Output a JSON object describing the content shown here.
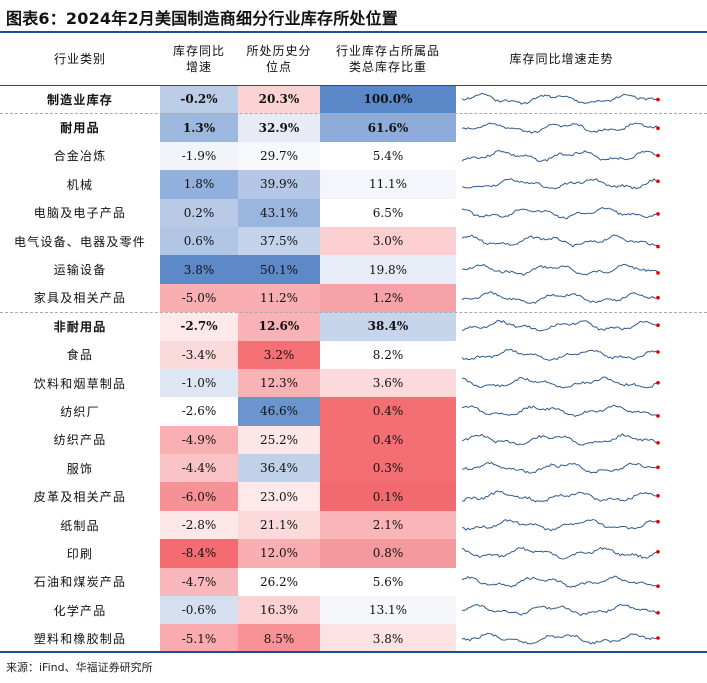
{
  "title": "图表6：2024年2月美国制造商细分行业库存所处位置",
  "source": "来源：iFind、华福证券研究所",
  "headers": {
    "category": "行业类别",
    "yoy_line1": "库存同比",
    "yoy_line2": "增速",
    "percentile_line1": "所处历史分",
    "percentile_line2": "位点",
    "share_line1": "行业库存占所属品",
    "share_line2": "类总库存比重",
    "trend": "库存同比增速走势"
  },
  "colors": {
    "rule": "#1b4f91",
    "spark_line": "#2e5c8f",
    "spark_end": "#e00000"
  },
  "rows": [
    {
      "name": "制造业库存",
      "yoy": "-0.2%",
      "pct": "20.3%",
      "share": "100.0%",
      "bold": true,
      "c1": "#bccde8",
      "c2": "#fbd3d5",
      "c3": "#5a87c8"
    },
    {
      "name": "耐用品",
      "yoy": "1.3%",
      "pct": "32.9%",
      "share": "61.6%",
      "bold": true,
      "c1": "#9db8df",
      "c2": "#e6ebf5",
      "c3": "#8eacda"
    },
    {
      "name": "合金冶炼",
      "yoy": "-1.9%",
      "pct": "29.7%",
      "share": "5.4%",
      "c1": "#f2f4fa",
      "c2": "#f7f8fb",
      "c3": "#ffffff"
    },
    {
      "name": "机械",
      "yoy": "1.8%",
      "pct": "39.9%",
      "share": "11.1%",
      "c1": "#92b0dd",
      "c2": "#b4c7e6",
      "c3": "#f5f6fb"
    },
    {
      "name": "电脑及电子产品",
      "yoy": "0.2%",
      "pct": "43.1%",
      "share": "6.5%",
      "c1": "#b9cae7",
      "c2": "#9ab5de",
      "c3": "#ffffff"
    },
    {
      "name": "电气设备、电器及零件",
      "yoy": "0.6%",
      "pct": "37.5%",
      "share": "3.0%",
      "c1": "#b1c5e5",
      "c2": "#c4d3eb",
      "c3": "#fbcfd2"
    },
    {
      "name": "运输设备",
      "yoy": "3.8%",
      "pct": "50.1%",
      "share": "19.8%",
      "c1": "#5e89c9",
      "c2": "#5e89c9",
      "c3": "#e7ecf6"
    },
    {
      "name": "家具及相关产品",
      "yoy": "-5.0%",
      "pct": "11.2%",
      "share": "1.2%",
      "c1": "#f9aeb1",
      "c2": "#f9aeb1",
      "c3": "#f7a2a6"
    },
    {
      "name": "非耐用品",
      "yoy": "-2.7%",
      "pct": "12.6%",
      "share": "38.4%",
      "bold": true,
      "c1": "#fde9ea",
      "c2": "#f9b2b5",
      "c3": "#c7d5ec"
    },
    {
      "name": "食品",
      "yoy": "-3.4%",
      "pct": "3.2%",
      "share": "8.2%",
      "c1": "#fbdadc",
      "c2": "#f47075",
      "c3": "#ffffff"
    },
    {
      "name": "饮料和烟草制品",
      "yoy": "-1.0%",
      "pct": "12.3%",
      "share": "3.6%",
      "c1": "#dfe6f3",
      "c2": "#f9b2b5",
      "c3": "#fcd9db"
    },
    {
      "name": "纺织厂",
      "yoy": "-2.6%",
      "pct": "46.6%",
      "share": "0.4%",
      "c1": "#ffffff",
      "c2": "#6d95cd",
      "c3": "#f36f74"
    },
    {
      "name": "纺织产品",
      "yoy": "-4.9%",
      "pct": "25.2%",
      "share": "0.4%",
      "c1": "#f9b0b3",
      "c2": "#fde6e7",
      "c3": "#f36f74"
    },
    {
      "name": "服饰",
      "yoy": "-4.4%",
      "pct": "36.4%",
      "share": "0.3%",
      "c1": "#fac4c6",
      "c2": "#c1d1ea",
      "c3": "#f36e73"
    },
    {
      "name": "皮革及相关产品",
      "yoy": "-6.0%",
      "pct": "23.0%",
      "share": "0.1%",
      "c1": "#f79196",
      "c2": "#fde9ea",
      "c3": "#f26a70"
    },
    {
      "name": "纸制品",
      "yoy": "-2.8%",
      "pct": "21.1%",
      "share": "2.1%",
      "c1": "#fde7e8",
      "c2": "#fcd9db",
      "c3": "#f9b5b8"
    },
    {
      "name": "印刷",
      "yoy": "-8.4%",
      "pct": "12.0%",
      "share": "0.8%",
      "c1": "#f46c72",
      "c2": "#f9aeb1",
      "c3": "#f49a9e"
    },
    {
      "name": "石油和煤炭产品",
      "yoy": "-4.7%",
      "pct": "26.2%",
      "share": "5.6%",
      "c1": "#f9b8bb",
      "c2": "#ffffff",
      "c3": "#ffffff"
    },
    {
      "name": "化学产品",
      "yoy": "-0.6%",
      "pct": "16.3%",
      "share": "13.1%",
      "c1": "#d5dff0",
      "c2": "#fbd1d3",
      "c3": "#f5f7fb"
    },
    {
      "name": "塑料和橡胶制品",
      "yoy": "-5.1%",
      "pct": "8.5%",
      "share": "3.8%",
      "c1": "#f9abaf",
      "c2": "#f79297",
      "c3": "#fde2e3"
    }
  ]
}
